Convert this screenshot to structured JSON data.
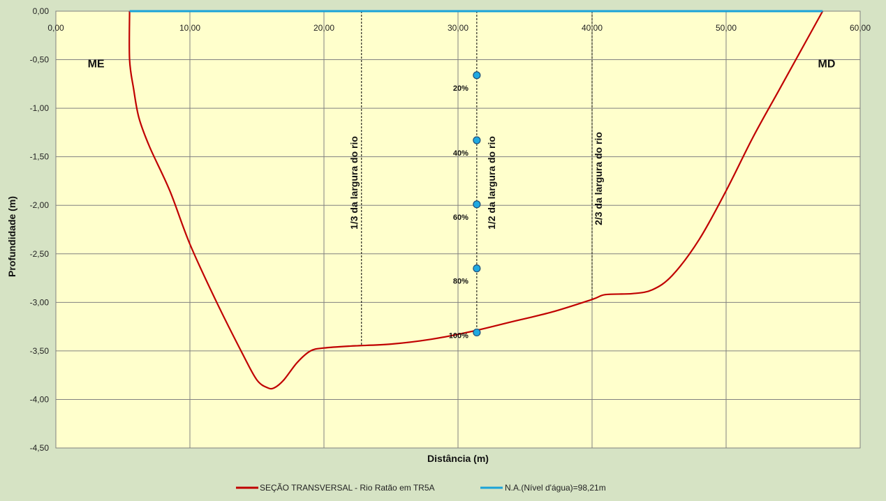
{
  "chart_data": {
    "type": "line",
    "xlabel": "Distância (m)",
    "ylabel": "Profundidade (m)",
    "xlim": [
      0,
      60
    ],
    "ylim": [
      -4.5,
      0
    ],
    "x_ticks": [
      0,
      10,
      20,
      30,
      40,
      50,
      60
    ],
    "x_tick_labels": [
      "0,00",
      "10,00",
      "20,00",
      "30,00",
      "40,00",
      "50,00",
      "60,00"
    ],
    "y_ticks": [
      0,
      -0.5,
      -1,
      -1.5,
      -2,
      -2.5,
      -3,
      -3.5,
      -4,
      -4.5
    ],
    "y_tick_labels": [
      "0,00",
      "-0,50",
      "-1,00",
      "-1,50",
      "-2,00",
      "-2,50",
      "-3,00",
      "-3,50",
      "-4,00",
      "-4,50"
    ],
    "grid": true,
    "legend_position": "bottom",
    "series": [
      {
        "name": "SEÇÃO TRANSVERSAL  - Rio Ratão em TR5A",
        "color": "#c00000",
        "x": [
          5.5,
          5.5,
          5.8,
          6.2,
          7.0,
          8.5,
          10.0,
          12.0,
          14.0,
          15.0,
          15.8,
          16.3,
          17.0,
          18.0,
          19.0,
          20.0,
          22.0,
          25.0,
          28.0,
          31.0,
          34.0,
          37.0,
          40.0,
          41.0,
          43.0,
          44.5,
          46.0,
          48.0,
          50.0,
          52.0,
          54.0,
          56.0,
          57.2
        ],
        "y": [
          0,
          -0.5,
          -0.8,
          -1.1,
          -1.4,
          -1.85,
          -2.4,
          -3.0,
          -3.55,
          -3.8,
          -3.88,
          -3.88,
          -3.8,
          -3.62,
          -3.5,
          -3.47,
          -3.45,
          -3.43,
          -3.38,
          -3.3,
          -3.2,
          -3.1,
          -2.97,
          -2.92,
          -2.91,
          -2.87,
          -2.72,
          -2.35,
          -1.85,
          -1.3,
          -0.8,
          -0.3,
          0
        ]
      },
      {
        "name": "N.A.(Nível d'água)=98,21m",
        "color": "#1aa3d8",
        "x": [
          5.5,
          57.2
        ],
        "y": [
          0,
          0
        ]
      }
    ],
    "reference_lines": [
      {
        "x": 22.8,
        "y_bottom": -3.45,
        "label": "1/3 da largura do rio"
      },
      {
        "x": 31.4,
        "y_bottom": -3.3,
        "label": "1/2 da largura do rio"
      },
      {
        "x": 40.0,
        "y_bottom": -2.97,
        "label": "2/3 da largura do rio"
      }
    ],
    "sample_points": [
      {
        "x": 31.4,
        "y": -0.66,
        "label": "20%"
      },
      {
        "x": 31.4,
        "y": -1.33,
        "label": "40%"
      },
      {
        "x": 31.4,
        "y": -1.99,
        "label": "60%"
      },
      {
        "x": 31.4,
        "y": -2.65,
        "label": "80%"
      },
      {
        "x": 31.4,
        "y": -3.31,
        "label": "100%"
      }
    ],
    "annotations": [
      {
        "text": "ME",
        "x": 3.0,
        "y": -0.55
      },
      {
        "text": "MD",
        "x": 57.5,
        "y": -0.55
      }
    ],
    "colors": {
      "background": "#d6e3c4",
      "plot_area": "#ffffcc",
      "grid": "#808080",
      "sample_point_fill": "#1fa9e1",
      "sample_point_stroke": "#1f4e79"
    }
  }
}
